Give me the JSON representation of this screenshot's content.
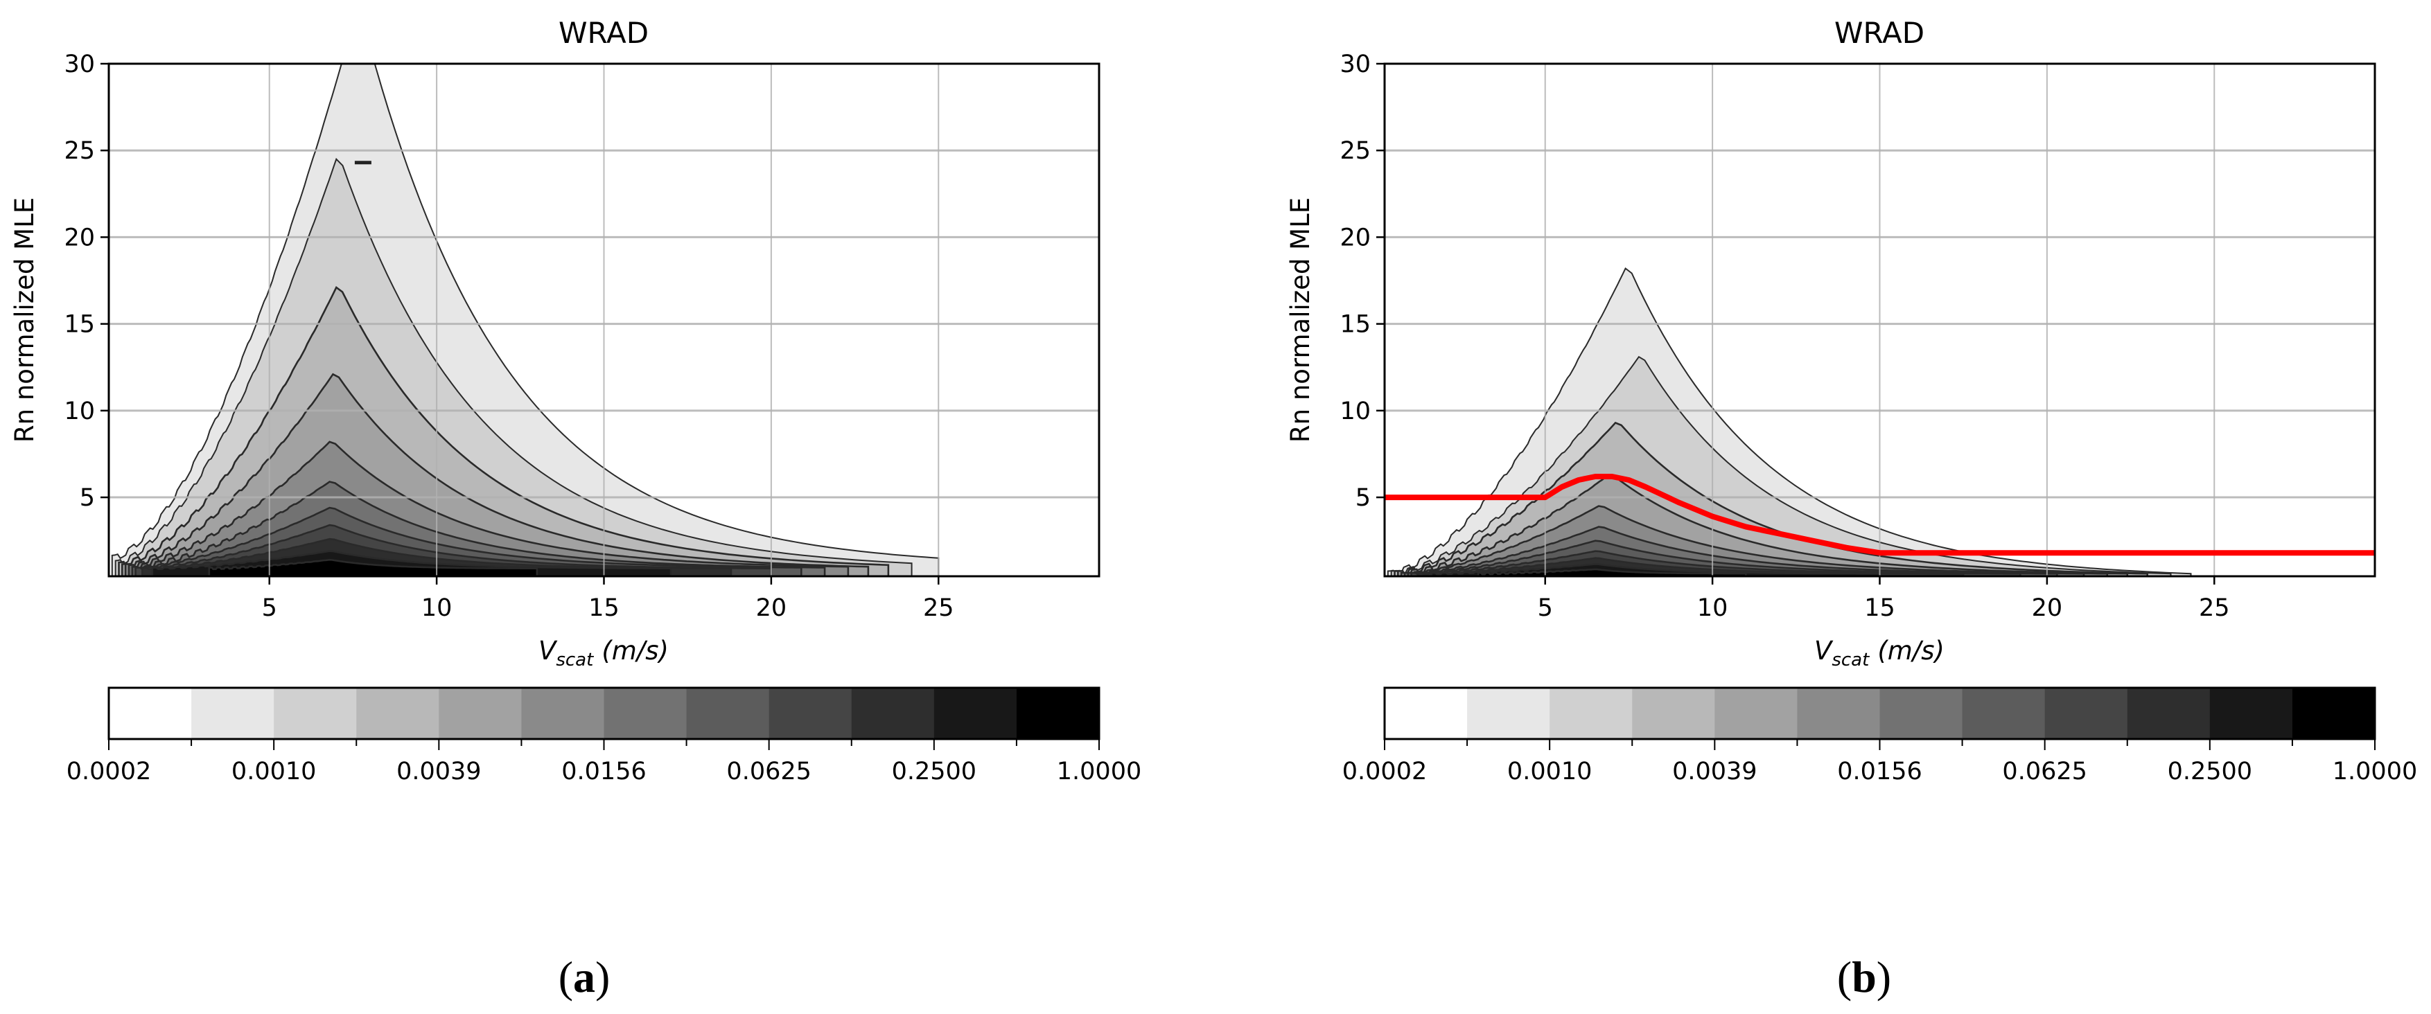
{
  "figure": {
    "captions": [
      "(a)",
      "(b)"
    ],
    "caption_letters": [
      "a",
      "b"
    ]
  },
  "chart_data": [
    {
      "type": "heatmap",
      "subtype": "filled-contour",
      "panel": "a",
      "title": "WRAD",
      "xlabel": "V_scat (m/s)",
      "xlabel_main": "V",
      "xlabel_sub": "scat",
      "xlabel_unit": "(m/s)",
      "ylabel": "Rn normalized MLE",
      "xlim": [
        0.2,
        29.8
      ],
      "ylim": [
        0.45,
        30
      ],
      "xticks": [
        5,
        10,
        15,
        20,
        25
      ],
      "yticks": [
        5,
        10,
        15,
        20,
        25,
        30
      ],
      "grid": true,
      "colorbar": {
        "orientation": "horizontal",
        "tick_labels": [
          "0.0002",
          "0.0010",
          "0.0039",
          "0.0156",
          "0.0625",
          "0.2500",
          "1.0000"
        ],
        "bins": 12,
        "colors": [
          "#ffffff",
          "#e7e7e7",
          "#d0d0d0",
          "#b8b8b8",
          "#a2a2a2",
          "#8a8a8a",
          "#727272",
          "#5c5c5c",
          "#454545",
          "#2e2e2e",
          "#181818",
          "#000000"
        ]
      },
      "contours": [
        {
          "level": 1,
          "peak_x": 7.6,
          "peak_y": 33.0,
          "left_x": 0.3,
          "right_x": 25.0,
          "base_y": 1.5
        },
        {
          "level": 2,
          "peak_x": 7.0,
          "peak_y": 24.5,
          "left_x": 0.4,
          "right_x": 24.2,
          "base_y": 1.2
        },
        {
          "level": 3,
          "peak_x": 7.0,
          "peak_y": 17.1,
          "left_x": 0.5,
          "right_x": 23.5,
          "base_y": 1.1
        },
        {
          "level": 4,
          "peak_x": 6.9,
          "peak_y": 12.1,
          "left_x": 0.6,
          "right_x": 22.9,
          "base_y": 1.0
        },
        {
          "level": 5,
          "peak_x": 6.8,
          "peak_y": 8.2,
          "left_x": 0.7,
          "right_x": 22.3,
          "base_y": 1.0
        },
        {
          "level": 6,
          "peak_x": 6.8,
          "peak_y": 5.9,
          "left_x": 0.8,
          "right_x": 21.6,
          "base_y": 0.95
        },
        {
          "level": 7,
          "peak_x": 6.8,
          "peak_y": 4.4,
          "left_x": 0.9,
          "right_x": 20.9,
          "base_y": 0.95
        },
        {
          "level": 8,
          "peak_x": 6.8,
          "peak_y": 3.4,
          "left_x": 1.0,
          "right_x": 20.0,
          "base_y": 0.9
        },
        {
          "level": 9,
          "peak_x": 6.8,
          "peak_y": 2.6,
          "left_x": 1.2,
          "right_x": 18.8,
          "base_y": 0.9
        },
        {
          "level": 10,
          "peak_x": 6.8,
          "peak_y": 1.9,
          "left_x": 1.5,
          "right_x": 17.0,
          "base_y": 0.9
        },
        {
          "level": 11,
          "peak_x": 6.8,
          "peak_y": 1.4,
          "left_x": 3.2,
          "right_x": 13.0,
          "base_y": 0.9
        }
      ],
      "annotations": [
        {
          "type": "small-dash",
          "x": 7.8,
          "y": 24.3
        }
      ]
    },
    {
      "type": "heatmap",
      "subtype": "filled-contour",
      "panel": "b",
      "title": "WRAD",
      "xlabel": "V_scat (m/s)",
      "xlabel_main": "V",
      "xlabel_sub": "scat",
      "xlabel_unit": "(m/s)",
      "ylabel": "Rn normalized MLE",
      "xlim": [
        0.2,
        29.8
      ],
      "ylim": [
        0.45,
        30
      ],
      "xticks": [
        5,
        10,
        15,
        20,
        25
      ],
      "yticks": [
        5,
        10,
        15,
        20,
        25,
        30
      ],
      "grid": true,
      "colorbar": {
        "orientation": "horizontal",
        "tick_labels": [
          "0.0002",
          "0.0010",
          "0.0039",
          "0.0156",
          "0.0625",
          "0.2500",
          "1.0000"
        ],
        "bins": 12,
        "colors": [
          "#ffffff",
          "#e7e7e7",
          "#d0d0d0",
          "#b8b8b8",
          "#a2a2a2",
          "#8a8a8a",
          "#727272",
          "#5c5c5c",
          "#454545",
          "#2e2e2e",
          "#181818",
          "#000000"
        ]
      },
      "contours": [
        {
          "level": 1,
          "peak_x": 7.4,
          "peak_y": 18.2,
          "left_x": 0.3,
          "right_x": 24.3,
          "base_y": 0.6
        },
        {
          "level": 2,
          "peak_x": 7.8,
          "peak_y": 13.1,
          "left_x": 0.4,
          "right_x": 23.7,
          "base_y": 0.6
        },
        {
          "level": 3,
          "peak_x": 7.1,
          "peak_y": 9.3,
          "left_x": 0.5,
          "right_x": 23.0,
          "base_y": 0.6
        },
        {
          "level": 4,
          "peak_x": 6.9,
          "peak_y": 6.3,
          "left_x": 0.6,
          "right_x": 22.4,
          "base_y": 0.6
        },
        {
          "level": 5,
          "peak_x": 6.6,
          "peak_y": 4.5,
          "left_x": 0.7,
          "right_x": 21.8,
          "base_y": 0.6
        },
        {
          "level": 6,
          "peak_x": 6.6,
          "peak_y": 3.3,
          "left_x": 0.8,
          "right_x": 21.1,
          "base_y": 0.6
        },
        {
          "level": 7,
          "peak_x": 6.5,
          "peak_y": 2.5,
          "left_x": 0.9,
          "right_x": 20.3,
          "base_y": 0.6
        },
        {
          "level": 8,
          "peak_x": 6.5,
          "peak_y": 1.9,
          "left_x": 1.0,
          "right_x": 19.2,
          "base_y": 0.6
        },
        {
          "level": 9,
          "peak_x": 6.5,
          "peak_y": 1.5,
          "left_x": 1.2,
          "right_x": 17.5,
          "base_y": 0.6
        },
        {
          "level": 10,
          "peak_x": 6.5,
          "peak_y": 1.15,
          "left_x": 1.6,
          "right_x": 15.0,
          "base_y": 0.6
        },
        {
          "level": 11,
          "peak_x": 6.5,
          "peak_y": 0.85,
          "left_x": 3.0,
          "right_x": 11.0,
          "base_y": 0.6
        }
      ],
      "threshold_line": {
        "color": "#ff0000",
        "x": [
          0.2,
          5.0,
          5.5,
          6.0,
          6.5,
          7.0,
          7.5,
          8.0,
          9.0,
          10.0,
          11.0,
          12.0,
          13.0,
          14.0,
          15.0,
          20.0,
          29.8
        ],
        "y": [
          5.0,
          5.0,
          5.6,
          6.0,
          6.2,
          6.2,
          6.0,
          5.6,
          4.7,
          3.9,
          3.3,
          2.9,
          2.5,
          2.1,
          1.8,
          1.8,
          1.8
        ]
      }
    }
  ]
}
